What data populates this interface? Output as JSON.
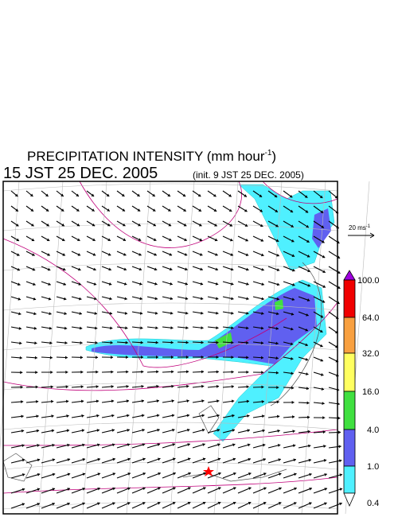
{
  "header": {
    "title": "PRECIPITATION INTENSITY (mm hour",
    "title_superscript": "-1",
    "title_close": ")",
    "time": "15 JST 25 DEC. 2005",
    "init": "(init. 9 JST 25 DEC. 2005)"
  },
  "scale": {
    "label": "20 ms",
    "superscript": "-1"
  },
  "colorbar": {
    "labels": [
      "100.0",
      "64.0",
      "32.0",
      "16.0",
      "4.0",
      "1.0",
      "0.4"
    ]
  }
}
